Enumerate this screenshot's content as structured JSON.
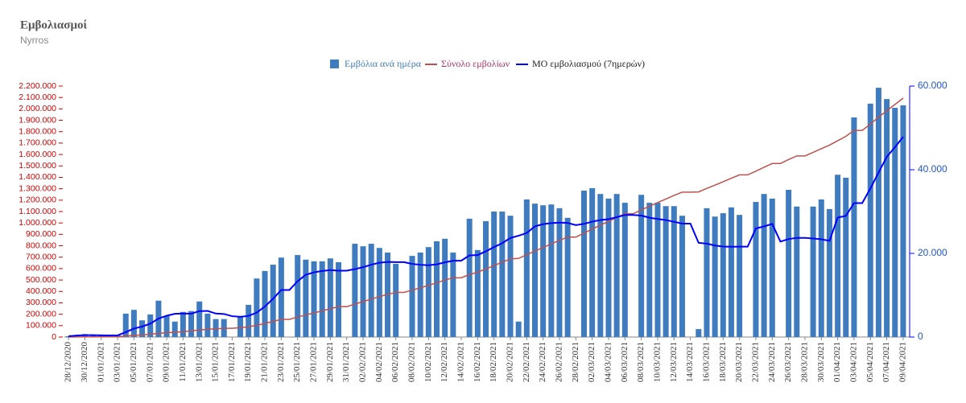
{
  "chart_data": {
    "type": "bar",
    "title": "Εμβολιασμοί",
    "subtitle": "Nyrros",
    "categories": [
      "28/12/2020",
      null,
      "30/12/2020",
      null,
      "01/01/2021",
      null,
      "03/01/2021",
      null,
      "05/01/2021",
      null,
      "07/01/2021",
      null,
      "09/01/2021",
      null,
      "11/01/2021",
      null,
      "13/01/2021",
      null,
      "15/01/2021",
      null,
      "17/01/2021",
      null,
      "19/01/2021",
      null,
      "21/01/2021",
      null,
      "23/01/2021",
      null,
      "25/01/2021",
      null,
      "27/01/2021",
      null,
      "29/01/2021",
      null,
      "31/01/2021",
      null,
      "02/02/2021",
      null,
      "04/02/2021",
      null,
      "06/02/2021",
      null,
      "08/02/2021",
      null,
      "10/02/2021",
      null,
      "12/02/2021",
      null,
      "14/02/2021",
      null,
      "16/02/2021",
      null,
      "18/02/2021",
      null,
      "20/02/2021",
      null,
      "22/02/2021",
      null,
      "24/02/2021",
      null,
      "26/02/2021",
      null,
      "28/02/2021",
      null,
      "02/03/2021",
      null,
      "04/03/2021",
      null,
      "06/03/2021",
      null,
      "08/03/2021",
      null,
      "10/03/2021",
      null,
      "12/03/2021",
      null,
      "14/03/2021",
      null,
      "16/03/2021",
      null,
      "18/03/2021",
      null,
      "20/03/2021",
      null,
      "22/03/2021",
      null,
      "24/03/2021",
      null,
      "26/03/2021",
      null,
      "28/03/2021",
      null,
      "30/03/2021",
      null,
      "01/04/2021",
      null,
      "03/04/2021",
      null,
      "05/04/2021",
      null,
      "07/04/2021",
      null,
      "09/04/2021"
    ],
    "series": [
      {
        "name": "Εμβόλια ανά ημέρα",
        "type": "bar",
        "axis": "y2",
        "color": "#3f7cbf",
        "values": [
          200,
          500,
          700,
          400,
          300,
          200,
          500,
          5600,
          6500,
          4000,
          5400,
          8700,
          5000,
          3700,
          6000,
          6200,
          8500,
          5600,
          4300,
          4300,
          0,
          5000,
          7700,
          14000,
          15800,
          17300,
          19000,
          0,
          19600,
          18500,
          18100,
          18100,
          18800,
          17900,
          0,
          22300,
          21700,
          22300,
          21300,
          20200,
          17500,
          0,
          19400,
          20200,
          21500,
          22900,
          23500,
          20200,
          0,
          28300,
          20800,
          27700,
          30000,
          30000,
          29000,
          3700,
          32900,
          31900,
          31500,
          31700,
          30800,
          28500,
          0,
          35000,
          35600,
          34200,
          33100,
          34200,
          32100,
          0,
          34000,
          32100,
          32100,
          31300,
          31300,
          29000,
          0,
          1900,
          30800,
          28800,
          29600,
          31000,
          29200,
          0,
          32300,
          34200,
          33100,
          0,
          35200,
          31200,
          0,
          31200,
          32900,
          30600,
          38800,
          38100,
          52500,
          0,
          55800,
          59600,
          56900,
          54800,
          55400
        ]
      },
      {
        "name": "Σύνολο εμβολίων",
        "type": "line",
        "axis": "y",
        "color": "#c0504d",
        "values": [
          200,
          700,
          1400,
          1800,
          2100,
          2300,
          2800,
          8400,
          14900,
          18900,
          24300,
          33000,
          38000,
          41700,
          47700,
          53900,
          62400,
          68000,
          72300,
          76600,
          76600,
          81600,
          89300,
          103300,
          119100,
          136400,
          155400,
          155400,
          175000,
          193500,
          211600,
          229700,
          248500,
          266400,
          266400,
          288700,
          310400,
          332700,
          354000,
          374200,
          391700,
          391700,
          411100,
          431300,
          452800,
          475700,
          499200,
          519400,
          519400,
          547700,
          568500,
          596200,
          626200,
          656200,
          685200,
          688900,
          721800,
          753700,
          785200,
          816900,
          847700,
          876200,
          876200,
          911200,
          946800,
          981000,
          1014100,
          1048300,
          1080400,
          1080400,
          1114400,
          1146500,
          1178600,
          1209900,
          1241200,
          1270200,
          1270200,
          1272100,
          1302900,
          1331700,
          1361300,
          1392300,
          1421500,
          1421500,
          1453800,
          1488000,
          1521100,
          1521100,
          1556300,
          1587500,
          1587500,
          1618700,
          1651600,
          1682200,
          1721000,
          1759100,
          1811600,
          1811600,
          1867400,
          1927000,
          1983900,
          2038700,
          2094100
        ]
      },
      {
        "name": "ΜΟ εμβολιασμού (7ημερών)",
        "type": "line",
        "axis": "y2",
        "color": "#0000ff",
        "values": [
          200,
          350,
          467,
          450,
          420,
          383,
          400,
          1171,
          2029,
          2500,
          3214,
          4414,
          5100,
          5557,
          5614,
          5571,
          6214,
          6243,
          5614,
          5514,
          4986,
          4843,
          5057,
          5843,
          7300,
          9157,
          11257,
          11257,
          13343,
          14886,
          15471,
          15800,
          16014,
          15857,
          15857,
          16243,
          16700,
          17300,
          17757,
          17957,
          17900,
          17900,
          17486,
          17271,
          17157,
          17386,
          17857,
          18243,
          18243,
          19514,
          19600,
          20486,
          21500,
          22429,
          23686,
          24214,
          24871,
          26457,
          27000,
          27243,
          27357,
          27286,
          26757,
          27057,
          27586,
          27971,
          28171,
          28657,
          29171,
          29171,
          29029,
          28529,
          28229,
          27971,
          27557,
          27114,
          27114,
          22529,
          22343,
          21871,
          21629,
          21586,
          21614,
          21614,
          25957,
          26443,
          27057,
          22829,
          23429,
          23714,
          23714,
          23557,
          23371,
          23014,
          28557,
          28971,
          32014,
          32014,
          35529,
          39343,
          43100,
          45386,
          47857
        ]
      }
    ],
    "ylim": [
      0,
      2200000
    ],
    "yticks": [
      0,
      {
        "value": 100000,
        "label": "100.000"
      },
      {
        "value": 200000,
        "label": "200.000"
      },
      {
        "value": 300000,
        "label": "300.000"
      },
      {
        "value": 400000,
        "label": "400.000"
      },
      {
        "value": 500000,
        "label": "500.000"
      },
      {
        "value": 600000,
        "label": "600.000"
      },
      {
        "value": 700000,
        "label": "700.000"
      },
      {
        "value": 800000,
        "label": "800.000"
      },
      {
        "value": 900000,
        "label": "900.000"
      },
      {
        "value": 1000000,
        "label": "1.000.000"
      },
      {
        "value": 1100000,
        "label": "1.100.000"
      },
      {
        "value": 1200000,
        "label": "1.200.000"
      },
      {
        "value": 1300000,
        "label": "1.300.000"
      },
      {
        "value": 1400000,
        "label": "1.400.000"
      },
      {
        "value": 1500000,
        "label": "1.500.000"
      },
      {
        "value": 1600000,
        "label": "1.600.000"
      },
      {
        "value": 1700000,
        "label": "1.700.000"
      },
      {
        "value": 1800000,
        "label": "1.800.000"
      },
      {
        "value": 1900000,
        "label": "1.900.000"
      },
      {
        "value": 2000000,
        "label": "2.000.000"
      },
      {
        "value": 2100000,
        "label": "2.100.000"
      },
      {
        "value": 2200000,
        "label": "2.200.000"
      }
    ],
    "y2lim": [
      0,
      60000
    ],
    "y2ticks": [
      0,
      {
        "value": 20000,
        "label": "20.000"
      },
      {
        "value": 40000,
        "label": "40.000"
      },
      {
        "value": 60000,
        "label": "60.000"
      }
    ],
    "grid": false
  }
}
